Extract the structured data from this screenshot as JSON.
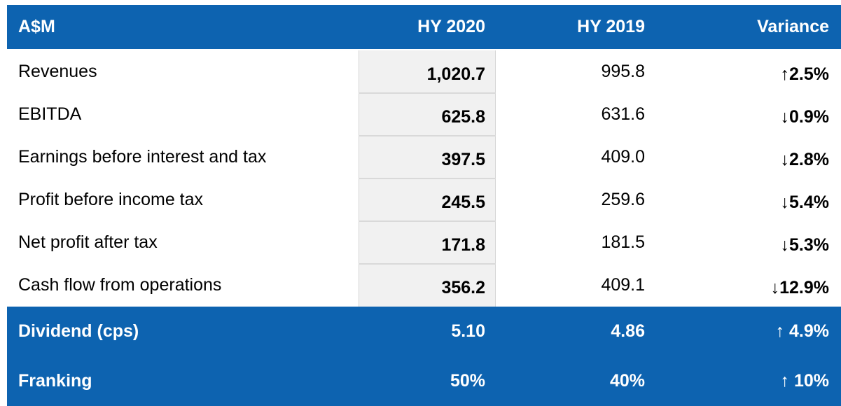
{
  "table": {
    "headers": {
      "label": "A$M",
      "hy2020": "HY 2020",
      "hy2019": "HY 2019",
      "variance": "Variance"
    },
    "rows": [
      {
        "label": "Revenues",
        "hy2020": "1,020.7",
        "hy2019": "995.8",
        "variance": "↑2.5%"
      },
      {
        "label": "EBITDA",
        "hy2020": "625.8",
        "hy2019": "631.6",
        "variance": "↓0.9%"
      },
      {
        "label": "Earnings before interest and tax",
        "hy2020": "397.5",
        "hy2019": "409.0",
        "variance": "↓2.8%"
      },
      {
        "label": "Profit before income tax",
        "hy2020": "245.5",
        "hy2019": "259.6",
        "variance": "↓5.4%"
      },
      {
        "label": "Net profit after tax",
        "hy2020": "171.8",
        "hy2019": "181.5",
        "variance": "↓5.3%"
      },
      {
        "label": "Cash flow from operations",
        "hy2020": "356.2",
        "hy2019": "409.1",
        "variance": "↓12.9%"
      }
    ],
    "highlight_rows": [
      {
        "label": "Dividend (cps)",
        "hy2020": "5.10",
        "hy2019": "4.86",
        "variance": "↑ 4.9%"
      },
      {
        "label": "Franking",
        "hy2020": "50%",
        "hy2019": "40%",
        "variance": "↑ 10%"
      }
    ],
    "colors": {
      "header_bg": "#0d63b0",
      "shade_bg": "#f1f1f1"
    }
  }
}
